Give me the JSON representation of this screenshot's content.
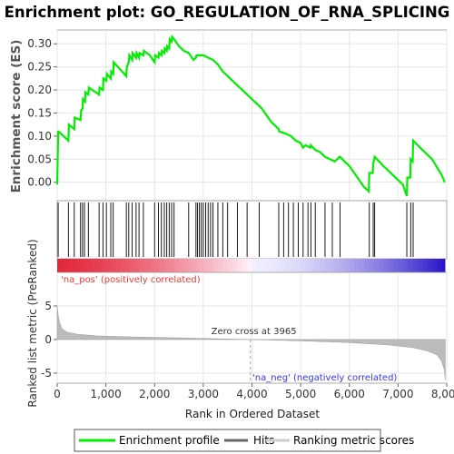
{
  "chart_data": {
    "type": "line",
    "title": "Enrichment plot: GO_REGULATION_OF_RNA_SPLICING",
    "ylabel_top": "Enrichment score (ES)",
    "ylabel_bottom": "Ranked list metric (PreRanked)",
    "xlabel": "Rank in Ordered Dataset",
    "xlim": [
      0,
      8000
    ],
    "x_ticks": [
      0,
      1000,
      2000,
      3000,
      4000,
      5000,
      6000,
      7000,
      8000
    ],
    "x_tick_labels": [
      "0",
      "1,000",
      "2,000",
      "3,000",
      "4,000",
      "5,000",
      "6,000",
      "7,000",
      "8,000"
    ],
    "es": {
      "ylim": [
        -0.04,
        0.33
      ],
      "y_ticks": [
        0.0,
        0.05,
        0.1,
        0.15,
        0.2,
        0.25,
        0.3
      ],
      "y_tick_labels": [
        "0.00",
        "0.05",
        "0.10",
        "0.15",
        "0.20",
        "0.25",
        "0.30"
      ],
      "series": [
        {
          "name": "Enrichment profile",
          "color": "#00ee00",
          "x": [
            0,
            20,
            30,
            230,
            240,
            350,
            360,
            480,
            490,
            520,
            530,
            570,
            580,
            640,
            650,
            860,
            870,
            940,
            950,
            1010,
            1020,
            1100,
            1110,
            1150,
            1160,
            1420,
            1430,
            1470,
            1480,
            1540,
            1550,
            1620,
            1630,
            1680,
            1690,
            1770,
            1780,
            1900,
            2000,
            2010,
            2080,
            2090,
            2140,
            2150,
            2200,
            2210,
            2250,
            2260,
            2300,
            2310,
            2350,
            2360,
            2400,
            2500,
            2600,
            2700,
            2800,
            2850,
            2860,
            2900,
            3000,
            3100,
            3200,
            3300,
            3400,
            3600,
            3800,
            4000,
            4200,
            4400,
            4550,
            4560,
            4700,
            4800,
            4900,
            5000,
            5050,
            5100,
            5200,
            5210,
            5300,
            5400,
            5500,
            5600,
            5700,
            5800,
            5810,
            5900,
            6000,
            6100,
            6200,
            6300,
            6400,
            6410,
            6480,
            6490,
            6510,
            6520,
            6700,
            6900,
            7100,
            7180,
            7190,
            7250,
            7260,
            7300,
            7310,
            7500,
            7700,
            7900,
            7960
          ],
          "y": [
            -0.005,
            0.11,
            0.11,
            0.09,
            0.125,
            0.115,
            0.14,
            0.135,
            0.155,
            0.16,
            0.18,
            0.175,
            0.195,
            0.19,
            0.205,
            0.19,
            0.205,
            0.2,
            0.225,
            0.22,
            0.235,
            0.225,
            0.24,
            0.235,
            0.26,
            0.23,
            0.25,
            0.26,
            0.275,
            0.265,
            0.28,
            0.27,
            0.28,
            0.27,
            0.28,
            0.275,
            0.285,
            0.275,
            0.26,
            0.275,
            0.27,
            0.28,
            0.275,
            0.285,
            0.28,
            0.29,
            0.285,
            0.295,
            0.29,
            0.31,
            0.305,
            0.315,
            0.31,
            0.295,
            0.285,
            0.28,
            0.265,
            0.27,
            0.275,
            0.275,
            0.275,
            0.27,
            0.265,
            0.255,
            0.24,
            0.22,
            0.2,
            0.18,
            0.16,
            0.13,
            0.115,
            0.11,
            0.105,
            0.1,
            0.09,
            0.085,
            0.075,
            0.08,
            0.075,
            0.08,
            0.07,
            0.065,
            0.055,
            0.05,
            0.045,
            0.055,
            0.055,
            0.045,
            0.035,
            0.02,
            0.005,
            -0.01,
            -0.02,
            0.02,
            0.02,
            0.04,
            0.05,
            0.055,
            0.035,
            0.015,
            -0.005,
            -0.03,
            0.01,
            0.01,
            0.05,
            0.045,
            0.09,
            0.07,
            0.05,
            0.015,
            0.0
          ]
        }
      ]
    },
    "hits": {
      "name": "Hits",
      "x": [
        20,
        230,
        350,
        480,
        520,
        560,
        640,
        860,
        940,
        1010,
        1100,
        1150,
        1420,
        1470,
        1540,
        1620,
        1680,
        1770,
        2000,
        2080,
        2140,
        2200,
        2250,
        2300,
        2350,
        2400,
        2700,
        2850,
        2880,
        2920,
        2960,
        3000,
        3050,
        3100,
        3150,
        3200,
        3300,
        3400,
        3500,
        3700,
        3900,
        4150,
        4550,
        4650,
        4750,
        4850,
        4950,
        5050,
        5150,
        5210,
        5300,
        5500,
        5650,
        5810,
        6410,
        6490,
        6520,
        7180,
        7260,
        7310
      ]
    },
    "ranked_metric": {
      "name": "Ranking metric scores",
      "ylim": [
        -6.5,
        10
      ],
      "y_ticks": [
        -5,
        0,
        5
      ],
      "y_tick_labels": [
        "-5",
        "0",
        "5"
      ],
      "x": [
        0,
        20,
        50,
        100,
        200,
        400,
        800,
        1500,
        2500,
        3965,
        5000,
        6000,
        6800,
        7300,
        7600,
        7800,
        7900,
        7950,
        7970
      ],
      "y": [
        5.0,
        3.6,
        2.5,
        1.6,
        1.1,
        0.8,
        0.55,
        0.4,
        0.25,
        0.0,
        -0.2,
        -0.45,
        -0.8,
        -1.2,
        -1.7,
        -2.3,
        -3.3,
        -4.5,
        -6.0
      ],
      "zero_cross_label": "Zero cross at 3965",
      "pos_label": "'na_pos' (positively correlated)",
      "neg_label": "'na_neg' (negatively correlated)"
    },
    "legend": [
      {
        "label": "Enrichment profile",
        "color": "#00ee00"
      },
      {
        "label": "Hits",
        "color": "#666666"
      },
      {
        "label": "Ranking metric scores",
        "color": "#cccccc"
      }
    ],
    "colors": {
      "pos_label": "#ff3333",
      "neg_label": "#3333ff",
      "metric_fill": "#bbbbbb",
      "zero_cross_line": "#aaaaaa"
    }
  }
}
